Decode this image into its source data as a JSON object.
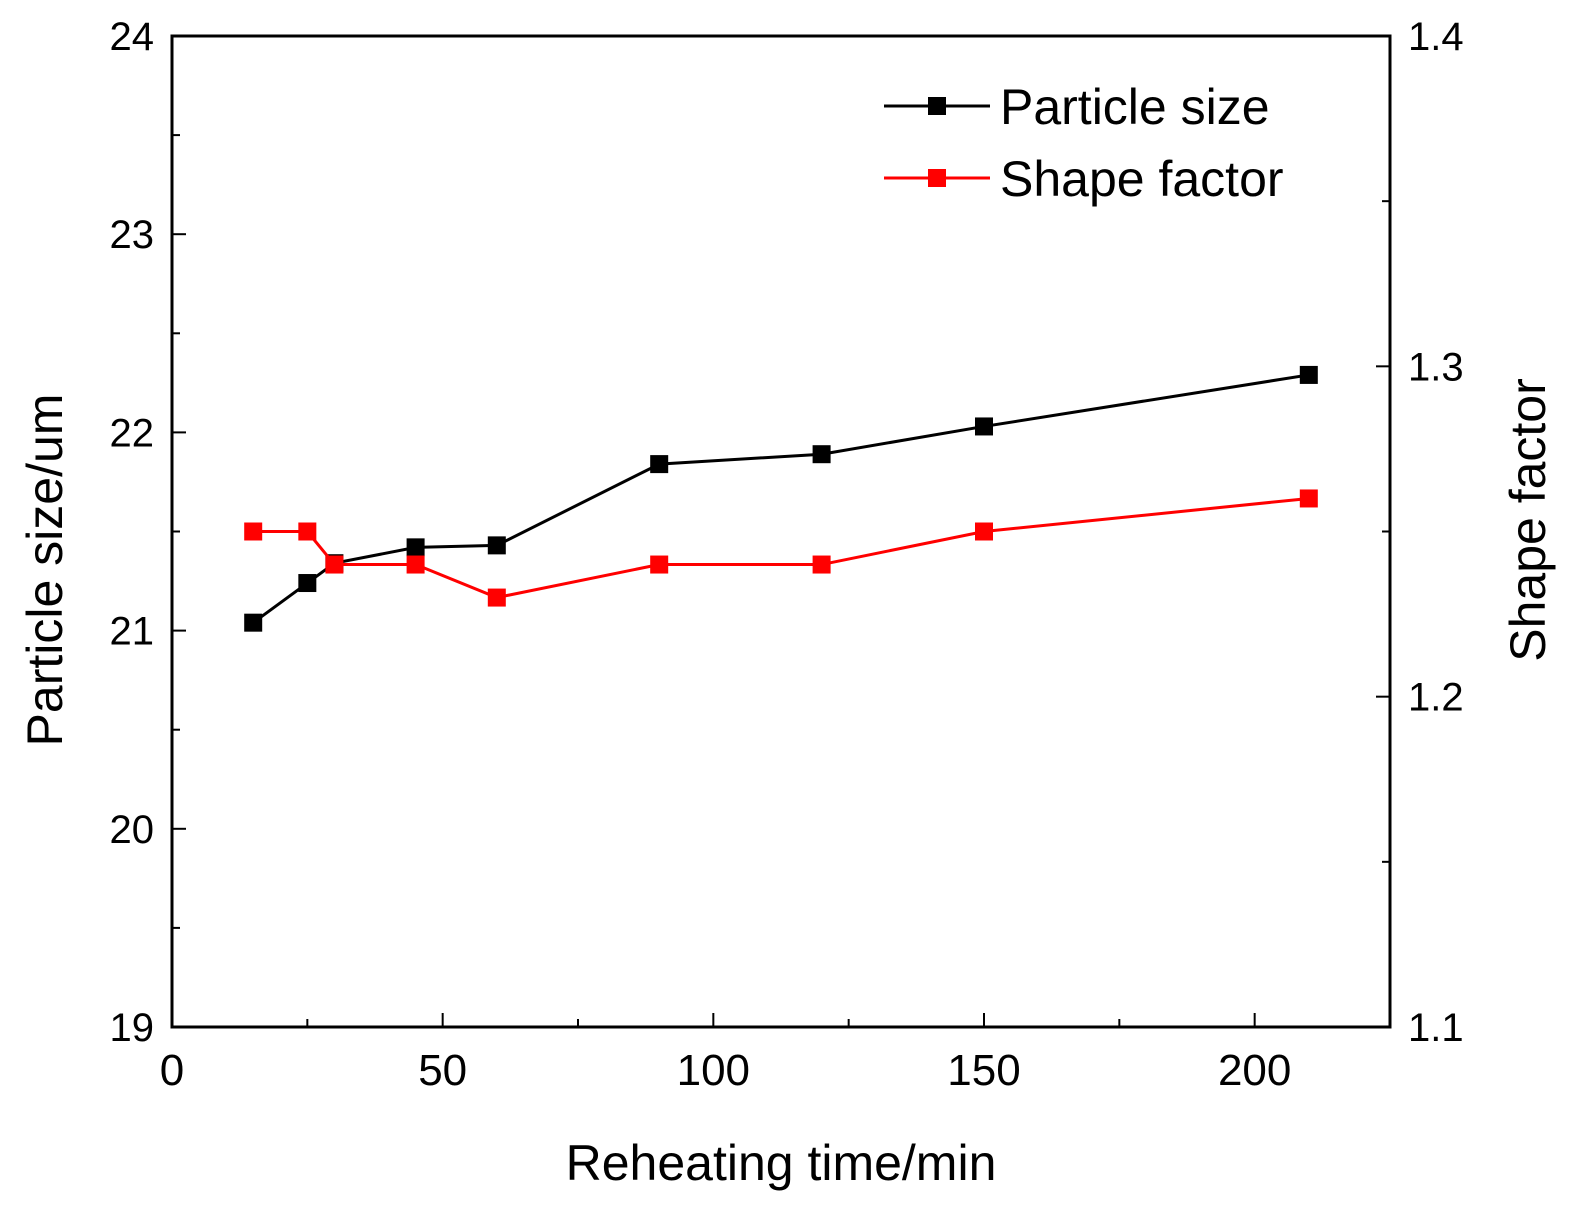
{
  "chart_data": {
    "type": "line",
    "title": "",
    "xlabel": "Reheating time/min",
    "ylabel": "Particle size/um",
    "y2label": "Shape factor",
    "xlim": [
      0,
      225
    ],
    "ylim": [
      19,
      24
    ],
    "y2lim": [
      1.1,
      1.4
    ],
    "xticks": [
      "0",
      "50",
      "100",
      "150",
      "200"
    ],
    "yticks": [
      "19",
      "20",
      "21",
      "22",
      "23",
      "24"
    ],
    "y2ticks": [
      "1.1",
      "1.2",
      "1.3",
      "1.4"
    ],
    "grid": false,
    "legend_position": "top-right",
    "series": [
      {
        "name": "Particle size",
        "axis": "left",
        "color": "#000000",
        "x": [
          15,
          25,
          30,
          45,
          60,
          90,
          120,
          150,
          210
        ],
        "values": [
          21.04,
          21.24,
          21.34,
          21.42,
          21.43,
          21.84,
          21.89,
          22.03,
          22.29
        ]
      },
      {
        "name": "Shape factor",
        "axis": "right",
        "color": "#ff0000",
        "x": [
          15,
          25,
          30,
          45,
          60,
          90,
          120,
          150,
          210
        ],
        "values": [
          1.25,
          1.25,
          1.24,
          1.24,
          1.23,
          1.24,
          1.24,
          1.25,
          1.26
        ]
      }
    ]
  }
}
